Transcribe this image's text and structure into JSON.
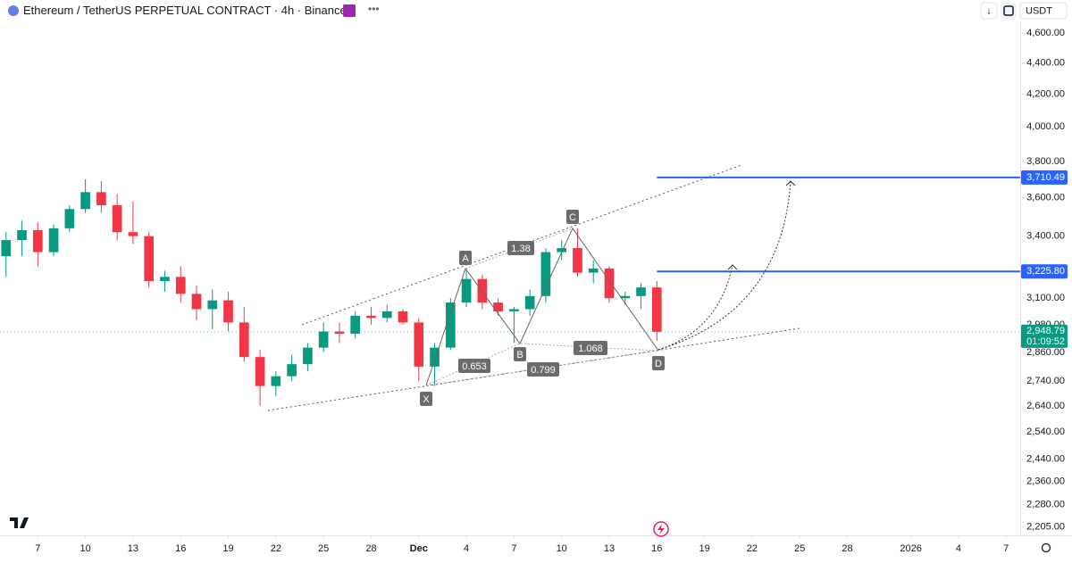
{
  "header": {
    "title": "Ethereum / TetherUS PERPETUAL CONTRACT · 4h · Binance",
    "currency": "USDT"
  },
  "chart_data": {
    "type": "candlestick",
    "x": [
      "11-05",
      "11-06",
      "11-07",
      "11-08",
      "11-09",
      "11-10",
      "11-11",
      "11-12",
      "11-13",
      "11-14",
      "11-15",
      "11-16",
      "11-17",
      "11-18",
      "11-19",
      "11-20",
      "11-21",
      "11-22",
      "11-23",
      "11-24",
      "11-25",
      "11-26",
      "11-27",
      "11-28",
      "11-29",
      "11-30",
      "12-01",
      "12-02",
      "12-03",
      "12-04",
      "12-05",
      "12-06",
      "12-07",
      "12-08",
      "12-09",
      "12-10",
      "12-11",
      "12-12",
      "12-13",
      "12-14",
      "12-15",
      "12-16"
    ],
    "open": [
      3300,
      3380,
      3430,
      3320,
      3440,
      3540,
      3630,
      3560,
      3420,
      3400,
      3180,
      3200,
      3120,
      3050,
      3090,
      2990,
      2840,
      2720,
      2760,
      2810,
      2880,
      2950,
      2940,
      3020,
      3010,
      3040,
      2990,
      2800,
      2880,
      3080,
      3190,
      3080,
      3040,
      3050,
      3110,
      3320,
      3340,
      3220,
      3240,
      3100,
      3110,
      3150
    ],
    "high": [
      3420,
      3480,
      3470,
      3460,
      3560,
      3700,
      3690,
      3620,
      3580,
      3420,
      3230,
      3250,
      3160,
      3140,
      3130,
      3060,
      2870,
      2780,
      2850,
      2900,
      2990,
      2990,
      3040,
      3060,
      3070,
      3050,
      3010,
      2900,
      3100,
      3240,
      3210,
      3100,
      3060,
      3140,
      3340,
      3380,
      3440,
      3280,
      3250,
      3130,
      3170,
      3180
    ],
    "low": [
      3200,
      3300,
      3250,
      3300,
      3420,
      3520,
      3520,
      3380,
      3360,
      3150,
      3130,
      3080,
      3000,
      2960,
      2950,
      2820,
      2640,
      2680,
      2740,
      2780,
      2860,
      2900,
      2920,
      2980,
      2990,
      2980,
      2740,
      2720,
      2870,
      3060,
      3050,
      3020,
      2900,
      3020,
      3080,
      3280,
      3200,
      3170,
      3080,
      3070,
      3050,
      2910
    ],
    "close": [
      3380,
      3430,
      3320,
      3440,
      3540,
      3630,
      3560,
      3420,
      3400,
      3180,
      3200,
      3120,
      3050,
      3090,
      2990,
      2840,
      2720,
      2760,
      2810,
      2880,
      2950,
      2940,
      3020,
      3010,
      3040,
      2990,
      2800,
      2880,
      3080,
      3190,
      3080,
      3040,
      3050,
      3110,
      3320,
      3340,
      3220,
      3240,
      3100,
      3110,
      3150,
      2948.79
    ],
    "up_color": "#089981",
    "down_color": "#f23645",
    "xlim": [
      "11-04",
      "01-08"
    ],
    "xticks": [
      {
        "value": "11-07",
        "label": "7"
      },
      {
        "value": "11-10",
        "label": "10"
      },
      {
        "value": "11-13",
        "label": "13"
      },
      {
        "value": "11-16",
        "label": "16"
      },
      {
        "value": "11-19",
        "label": "19"
      },
      {
        "value": "11-22",
        "label": "22"
      },
      {
        "value": "11-25",
        "label": "25"
      },
      {
        "value": "11-28",
        "label": "28"
      },
      {
        "value": "12-01",
        "label": "Dec"
      },
      {
        "value": "12-04",
        "label": "4"
      },
      {
        "value": "12-07",
        "label": "7"
      },
      {
        "value": "12-10",
        "label": "10"
      },
      {
        "value": "12-13",
        "label": "13"
      },
      {
        "value": "12-16",
        "label": "16"
      },
      {
        "value": "12-19",
        "label": "19"
      },
      {
        "value": "12-22",
        "label": "22"
      },
      {
        "value": "12-25",
        "label": "25"
      },
      {
        "value": "12-28",
        "label": "28"
      },
      {
        "value": "01-01",
        "label": "2026"
      },
      {
        "value": "01-04",
        "label": "4"
      },
      {
        "value": "01-07",
        "label": "7"
      }
    ],
    "ylim": [
      2178,
      4832
    ],
    "yscale": "log",
    "yticks": [
      {
        "value": 4600,
        "label": "4,600.00"
      },
      {
        "value": 4400,
        "label": "4,400.00"
      },
      {
        "value": 4200,
        "label": "4,200.00"
      },
      {
        "value": 4000,
        "label": "4,000.00"
      },
      {
        "value": 3800,
        "label": "3,800.00"
      },
      {
        "value": 3600,
        "label": "3,600.00"
      },
      {
        "value": 3400,
        "label": "3,400.00"
      },
      {
        "value": 3100,
        "label": "3,100.00"
      },
      {
        "value": 2980,
        "label": "2,980.00"
      },
      {
        "value": 2860,
        "label": "2,860.00"
      },
      {
        "value": 2740,
        "label": "2,740.00"
      },
      {
        "value": 2640,
        "label": "2,640.00"
      },
      {
        "value": 2540,
        "label": "2,540.00"
      },
      {
        "value": 2440,
        "label": "2,440.00"
      },
      {
        "value": 2360,
        "label": "2,360.00"
      },
      {
        "value": 2280,
        "label": "2,280.00"
      },
      {
        "value": 2205,
        "label": "2,205.00"
      }
    ],
    "levels": [
      {
        "value": 3710.49,
        "label": "3,710.49",
        "color": "#2962ff"
      },
      {
        "value": 3225.8,
        "label": "3,225.80",
        "color": "#2962ff"
      }
    ],
    "last_price": {
      "value": 2948.79,
      "label": "2,948.79",
      "countdown": "01:09:52",
      "color": "#089981"
    },
    "pattern": {
      "points": [
        "X",
        "A",
        "B",
        "C",
        "D"
      ],
      "ratios": [
        1.38,
        0.653,
        0.799,
        1.068
      ]
    }
  }
}
